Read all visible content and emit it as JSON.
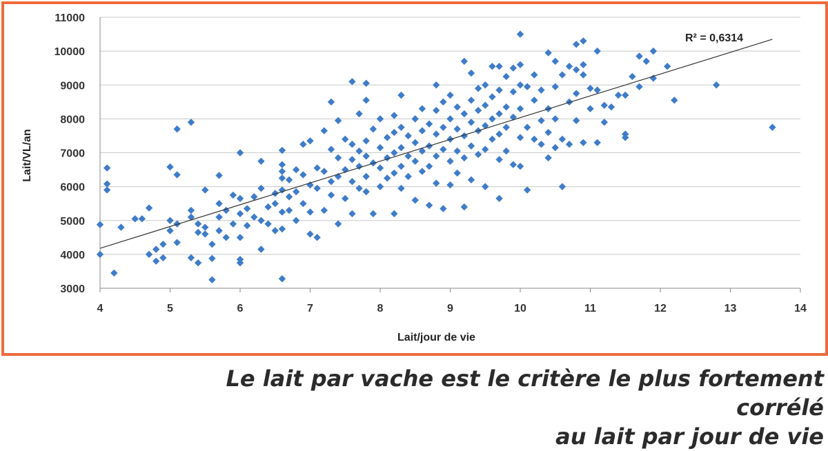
{
  "colors": {
    "frame": "#ee6a3c",
    "points": "#3f7cc8",
    "trend": "#333333",
    "grid": "#c8c8c8"
  },
  "chart_data": {
    "type": "scatter",
    "xlabel": "Lait/jour de vie",
    "ylabel": "Lait/VL/an",
    "xlim": [
      4,
      14
    ],
    "ylim": [
      3000,
      11000
    ],
    "xticks": [
      "4",
      "5",
      "6",
      "7",
      "8",
      "9",
      "10",
      "11",
      "12",
      "13",
      "14"
    ],
    "yticks": [
      "3000",
      "4000",
      "5000",
      "6000",
      "7000",
      "8000",
      "9000",
      "10000",
      "11000"
    ],
    "grid": "horizontal",
    "trendline": {
      "type": "linear",
      "x": [
        4,
        13.6
      ],
      "y": [
        4180,
        10350
      ]
    },
    "r_squared_label": "R² = 0,6314",
    "marker": "diamond",
    "points": [
      [
        4.0,
        4000
      ],
      [
        4.0,
        4880
      ],
      [
        4.1,
        6550
      ],
      [
        4.1,
        6080
      ],
      [
        4.1,
        5900
      ],
      [
        4.2,
        3450
      ],
      [
        4.3,
        4800
      ],
      [
        4.5,
        5050
      ],
      [
        4.6,
        5050
      ],
      [
        4.7,
        5370
      ],
      [
        4.7,
        4000
      ],
      [
        4.8,
        3800
      ],
      [
        4.8,
        4150
      ],
      [
        4.9,
        4300
      ],
      [
        4.9,
        3900
      ],
      [
        5.0,
        6580
      ],
      [
        5.0,
        5000
      ],
      [
        5.0,
        4700
      ],
      [
        5.1,
        7700
      ],
      [
        5.1,
        6350
      ],
      [
        5.1,
        4900
      ],
      [
        5.1,
        4350
      ],
      [
        5.3,
        7900
      ],
      [
        5.3,
        5300
      ],
      [
        5.3,
        5100
      ],
      [
        5.3,
        3900
      ],
      [
        5.4,
        3750
      ],
      [
        5.4,
        4650
      ],
      [
        5.4,
        4900
      ],
      [
        5.5,
        5900
      ],
      [
        5.5,
        4600
      ],
      [
        5.5,
        4800
      ],
      [
        5.6,
        3250
      ],
      [
        5.6,
        3880
      ],
      [
        5.6,
        4300
      ],
      [
        5.7,
        6330
      ],
      [
        5.7,
        5500
      ],
      [
        5.7,
        5100
      ],
      [
        5.7,
        4700
      ],
      [
        5.8,
        5300
      ],
      [
        5.8,
        4500
      ],
      [
        5.9,
        4900
      ],
      [
        5.9,
        5750
      ],
      [
        6.0,
        7000
      ],
      [
        6.0,
        5650
      ],
      [
        6.0,
        5200
      ],
      [
        6.0,
        4500
      ],
      [
        6.0,
        3850
      ],
      [
        6.0,
        3750
      ],
      [
        6.1,
        5350
      ],
      [
        6.1,
        4850
      ],
      [
        6.2,
        5700
      ],
      [
        6.2,
        5100
      ],
      [
        6.3,
        6750
      ],
      [
        6.3,
        5950
      ],
      [
        6.3,
        5000
      ],
      [
        6.3,
        4150
      ],
      [
        6.4,
        5400
      ],
      [
        6.4,
        4900
      ],
      [
        6.5,
        5800
      ],
      [
        6.5,
        5500
      ],
      [
        6.5,
        4700
      ],
      [
        6.6,
        7070
      ],
      [
        6.6,
        6650
      ],
      [
        6.6,
        6450
      ],
      [
        6.6,
        6250
      ],
      [
        6.6,
        5900
      ],
      [
        6.6,
        5250
      ],
      [
        6.6,
        4750
      ],
      [
        6.6,
        3280
      ],
      [
        6.7,
        6200
      ],
      [
        6.7,
        5700
      ],
      [
        6.7,
        5300
      ],
      [
        6.8,
        6500
      ],
      [
        6.8,
        5850
      ],
      [
        6.8,
        5000
      ],
      [
        6.9,
        7250
      ],
      [
        6.9,
        6350
      ],
      [
        6.9,
        5500
      ],
      [
        7.0,
        7350
      ],
      [
        7.0,
        6050
      ],
      [
        7.0,
        5250
      ],
      [
        7.0,
        4600
      ],
      [
        7.1,
        6550
      ],
      [
        7.1,
        5950
      ],
      [
        7.1,
        4500
      ],
      [
        7.2,
        7650
      ],
      [
        7.2,
        6450
      ],
      [
        7.2,
        5300
      ],
      [
        7.3,
        8500
      ],
      [
        7.3,
        7100
      ],
      [
        7.3,
        6150
      ],
      [
        7.3,
        5750
      ],
      [
        7.4,
        7950
      ],
      [
        7.4,
        6850
      ],
      [
        7.4,
        6300
      ],
      [
        7.4,
        4900
      ],
      [
        7.5,
        7400
      ],
      [
        7.5,
        6500
      ],
      [
        7.5,
        5650
      ],
      [
        7.6,
        9100
      ],
      [
        7.6,
        7250
      ],
      [
        7.6,
        6800
      ],
      [
        7.6,
        6150
      ],
      [
        7.6,
        5200
      ],
      [
        7.7,
        8150
      ],
      [
        7.7,
        7050
      ],
      [
        7.7,
        6600
      ],
      [
        7.7,
        5950
      ],
      [
        7.8,
        9050
      ],
      [
        7.8,
        8550
      ],
      [
        7.8,
        7350
      ],
      [
        7.8,
        6900
      ],
      [
        7.8,
        6300
      ],
      [
        7.8,
        5850
      ],
      [
        7.9,
        7700
      ],
      [
        7.9,
        6700
      ],
      [
        7.9,
        5200
      ],
      [
        8.0,
        8000
      ],
      [
        8.0,
        7150
      ],
      [
        8.0,
        6550
      ],
      [
        8.0,
        6000
      ],
      [
        8.1,
        7450
      ],
      [
        8.1,
        6850
      ],
      [
        8.1,
        6250
      ],
      [
        8.2,
        8100
      ],
      [
        8.2,
        7600
      ],
      [
        8.2,
        7000
      ],
      [
        8.2,
        6400
      ],
      [
        8.2,
        5200
      ],
      [
        8.3,
        8700
      ],
      [
        8.3,
        7750
      ],
      [
        8.3,
        7150
      ],
      [
        8.3,
        6600
      ],
      [
        8.3,
        5950
      ],
      [
        8.4,
        7500
      ],
      [
        8.4,
        6900
      ],
      [
        8.4,
        6300
      ],
      [
        8.5,
        8000
      ],
      [
        8.5,
        7300
      ],
      [
        8.5,
        6750
      ],
      [
        8.5,
        5600
      ],
      [
        8.6,
        8300
      ],
      [
        8.6,
        7650
      ],
      [
        8.6,
        7050
      ],
      [
        8.6,
        6450
      ],
      [
        8.7,
        7850
      ],
      [
        8.7,
        7200
      ],
      [
        8.7,
        6600
      ],
      [
        8.7,
        5450
      ],
      [
        8.8,
        9000
      ],
      [
        8.8,
        8250
      ],
      [
        8.8,
        7550
      ],
      [
        8.8,
        6900
      ],
      [
        8.8,
        6100
      ],
      [
        8.9,
        8500
      ],
      [
        8.9,
        7750
      ],
      [
        8.9,
        7100
      ],
      [
        8.9,
        5350
      ],
      [
        9.0,
        8700
      ],
      [
        9.0,
        8000
      ],
      [
        9.0,
        7400
      ],
      [
        9.0,
        6750
      ],
      [
        9.0,
        6050
      ],
      [
        9.1,
        8350
      ],
      [
        9.1,
        7700
      ],
      [
        9.1,
        7050
      ],
      [
        9.1,
        6400
      ],
      [
        9.2,
        9700
      ],
      [
        9.2,
        8150
      ],
      [
        9.2,
        7500
      ],
      [
        9.2,
        6850
      ],
      [
        9.2,
        5400
      ],
      [
        9.3,
        9350
      ],
      [
        9.3,
        8550
      ],
      [
        9.3,
        7900
      ],
      [
        9.3,
        7200
      ],
      [
        9.3,
        6200
      ],
      [
        9.4,
        8900
      ],
      [
        9.4,
        8250
      ],
      [
        9.4,
        7650
      ],
      [
        9.4,
        6950
      ],
      [
        9.5,
        9000
      ],
      [
        9.5,
        8400
      ],
      [
        9.5,
        7800
      ],
      [
        9.5,
        7100
      ],
      [
        9.5,
        6000
      ],
      [
        9.6,
        9550
      ],
      [
        9.6,
        8650
      ],
      [
        9.6,
        8000
      ],
      [
        9.6,
        7400
      ],
      [
        9.7,
        9550
      ],
      [
        9.7,
        8850
      ],
      [
        9.7,
        8150
      ],
      [
        9.7,
        7550
      ],
      [
        9.7,
        6800
      ],
      [
        9.7,
        5650
      ],
      [
        9.8,
        9250
      ],
      [
        9.8,
        8350
      ],
      [
        9.8,
        7750
      ],
      [
        9.8,
        7050
      ],
      [
        9.9,
        9500
      ],
      [
        9.9,
        8800
      ],
      [
        9.9,
        8050
      ],
      [
        9.9,
        6650
      ],
      [
        10.0,
        10500
      ],
      [
        10.0,
        9600
      ],
      [
        10.0,
        9000
      ],
      [
        10.0,
        8300
      ],
      [
        10.0,
        7450
      ],
      [
        10.0,
        6600
      ],
      [
        10.1,
        8950
      ],
      [
        10.1,
        7750
      ],
      [
        10.1,
        5900
      ],
      [
        10.2,
        9300
      ],
      [
        10.2,
        8550
      ],
      [
        10.2,
        7400
      ],
      [
        10.3,
        8850
      ],
      [
        10.3,
        7950
      ],
      [
        10.3,
        7250
      ],
      [
        10.4,
        9950
      ],
      [
        10.4,
        8300
      ],
      [
        10.4,
        7600
      ],
      [
        10.4,
        6850
      ],
      [
        10.5,
        9700
      ],
      [
        10.5,
        8950
      ],
      [
        10.5,
        8000
      ],
      [
        10.5,
        7150
      ],
      [
        10.6,
        9300
      ],
      [
        10.6,
        7400
      ],
      [
        10.6,
        6000
      ],
      [
        10.7,
        9550
      ],
      [
        10.7,
        8500
      ],
      [
        10.7,
        7250
      ],
      [
        10.8,
        10200
      ],
      [
        10.8,
        9450
      ],
      [
        10.8,
        8750
      ],
      [
        10.8,
        7950
      ],
      [
        10.9,
        10300
      ],
      [
        10.9,
        9600
      ],
      [
        10.9,
        9300
      ],
      [
        10.9,
        7300
      ],
      [
        11.0,
        8900
      ],
      [
        11.0,
        8300
      ],
      [
        11.1,
        10000
      ],
      [
        11.1,
        8850
      ],
      [
        11.1,
        7300
      ],
      [
        11.2,
        8400
      ],
      [
        11.2,
        7900
      ],
      [
        11.3,
        8350
      ],
      [
        11.4,
        8700
      ],
      [
        11.5,
        8700
      ],
      [
        11.5,
        7550
      ],
      [
        11.5,
        7450
      ],
      [
        11.6,
        9250
      ],
      [
        11.7,
        9850
      ],
      [
        11.7,
        8950
      ],
      [
        11.8,
        9700
      ],
      [
        11.9,
        10000
      ],
      [
        11.9,
        9200
      ],
      [
        12.1,
        9550
      ],
      [
        12.2,
        8550
      ],
      [
        12.8,
        9000
      ],
      [
        13.6,
        7750
      ]
    ]
  }
}
